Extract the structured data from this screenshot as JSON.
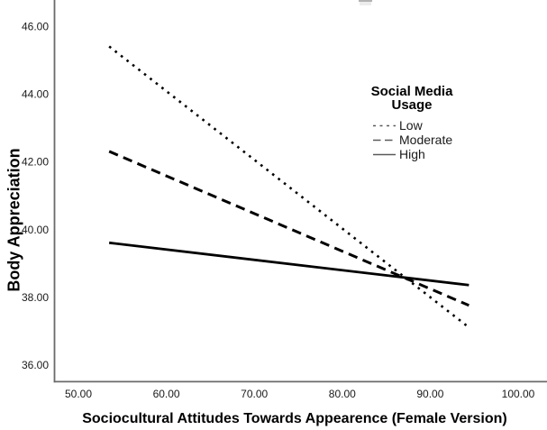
{
  "figure": {
    "y_axis_title": "Body Appreciation",
    "x_axis_title": "Sociocultural Attitudes Towards Appearence (Female Version)"
  },
  "legend": {
    "title": "Social Media Usage",
    "entries": [
      {
        "label": "Low",
        "style": "dotted"
      },
      {
        "label": "Moderate",
        "style": "dashed"
      },
      {
        "label": "High",
        "style": "solid"
      }
    ]
  },
  "chart_data": {
    "type": "line",
    "title": "",
    "xlabel": "Sociocultural Attitudes Towards Appearence (Female Version)",
    "ylabel": "Body Appreciation",
    "xlim": [
      47.2,
      103.3
    ],
    "ylim": [
      35.4,
      46.8
    ],
    "x_ticks": [
      50,
      60,
      70,
      80,
      90,
      100
    ],
    "x_tick_labels": [
      "50.00",
      "60.00",
      "70.00",
      "80.00",
      "90.00",
      "100.00"
    ],
    "y_ticks": [
      36,
      38,
      40,
      42,
      44,
      46
    ],
    "y_tick_labels": [
      "36.00",
      "38.00",
      "40.00",
      "42.00",
      "44.00",
      "46.00"
    ],
    "grid": false,
    "legend_position": "upper-right-inside",
    "series": [
      {
        "name": "Low",
        "line_style": "dotted",
        "color": "#000000",
        "points": [
          [
            53.5,
            45.4
          ],
          [
            94.4,
            37.1
          ]
        ]
      },
      {
        "name": "Moderate",
        "line_style": "dashed",
        "color": "#000000",
        "points": [
          [
            53.5,
            42.3
          ],
          [
            94.4,
            37.75
          ]
        ]
      },
      {
        "name": "High",
        "line_style": "solid",
        "color": "#000000",
        "points": [
          [
            53.5,
            39.6
          ],
          [
            94.4,
            38.35
          ]
        ]
      }
    ]
  },
  "colors": {
    "line": "#000000",
    "axis": "#6a6a6a",
    "legend_sample": "#5a5a5a",
    "text": "#1a1a1a",
    "background": "#ffffff",
    "artifact": "#b3b3b3"
  }
}
